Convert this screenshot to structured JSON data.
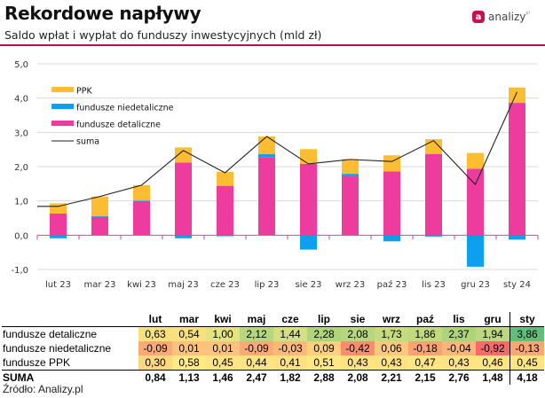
{
  "header": {
    "title": "Rekordowe napływy",
    "subtitle": "Saldo wpłat i wypłat do funduszy inwestycyjnych (mld zł)",
    "logo_mark": "a",
    "logo_text": "analizy",
    "logo_sup": "pl"
  },
  "colors": {
    "ppk": "#FDBD33",
    "niedetaliczne": "#0DA0F0",
    "detaliczne": "#EE3C9E",
    "suma": "#222222",
    "grid": "#D9D9D9",
    "axis": "#D9439B",
    "accent": "#B0115A"
  },
  "chart_data": {
    "type": "bar",
    "stacked": true,
    "title": "Rekordowe napływy",
    "subtitle": "Saldo wpłat i wypłat do funduszy inwestycyjnych (mld zł)",
    "xlabel": "",
    "ylabel": "",
    "ylim": [
      -1.0,
      5.0
    ],
    "yticks": [
      -1.0,
      0.0,
      1.0,
      2.0,
      3.0,
      4.0,
      5.0
    ],
    "ytick_labels": [
      "-1,0",
      "0,0",
      "1,0",
      "2,0",
      "3,0",
      "4,0",
      "5,0"
    ],
    "grid": true,
    "legend_position": "top-left",
    "categories": [
      "lut 23",
      "mar 23",
      "kwi 23",
      "maj 23",
      "cze 23",
      "lip 23",
      "sie 23",
      "wrz 23",
      "paź 23",
      "lis 23",
      "gru 23",
      "sty 24"
    ],
    "series": [
      {
        "name": "fundusze detaliczne",
        "type": "bar",
        "color_key": "detaliczne",
        "values": [
          0.63,
          0.54,
          1.0,
          2.12,
          1.44,
          2.28,
          2.08,
          1.73,
          1.86,
          2.37,
          1.94,
          3.86
        ]
      },
      {
        "name": "fundusze niedetaliczne",
        "type": "bar",
        "color_key": "niedetaliczne",
        "values": [
          -0.09,
          0.01,
          0.01,
          -0.09,
          -0.03,
          0.09,
          -0.42,
          0.06,
          -0.18,
          -0.04,
          -0.92,
          -0.13
        ]
      },
      {
        "name": "PPK",
        "type": "bar",
        "color_key": "ppk",
        "values": [
          0.3,
          0.58,
          0.45,
          0.44,
          0.41,
          0.51,
          0.43,
          0.43,
          0.47,
          0.43,
          0.46,
          0.45
        ]
      },
      {
        "name": "suma",
        "type": "line",
        "color_key": "suma",
        "values": [
          0.84,
          1.13,
          1.46,
          2.47,
          1.82,
          2.88,
          2.08,
          2.21,
          2.15,
          2.76,
          1.48,
          4.18
        ]
      }
    ],
    "legend": [
      {
        "label": "PPK",
        "color_key": "ppk",
        "kind": "box"
      },
      {
        "label": "fundusze niedetaliczne",
        "color_key": "niedetaliczne",
        "kind": "box"
      },
      {
        "label": "fundusze detaliczne",
        "color_key": "detaliczne",
        "kind": "box"
      },
      {
        "label": "suma",
        "color_key": "suma",
        "kind": "line"
      }
    ]
  },
  "table": {
    "headers": [
      "lut",
      "mar",
      "kwi",
      "maj",
      "cze",
      "lip",
      "sie",
      "wrz",
      "paź",
      "lis",
      "gru",
      "sty"
    ],
    "rows": [
      {
        "label": "fundusze detaliczne",
        "values": [
          "0,63",
          "0,54",
          "1,00",
          "2,12",
          "1,44",
          "2,28",
          "2,08",
          "1,73",
          "1,86",
          "2,37",
          "1,94",
          "3,86"
        ],
        "colors": [
          "#F7E07E",
          "#F9E07F",
          "#E4E283",
          "#B6D67D",
          "#D4DE82",
          "#B0D47C",
          "#B8D67D",
          "#C8DA80",
          "#C2D97F",
          "#ADD37C",
          "#BDD77E",
          "#63BE7B"
        ]
      },
      {
        "label": "fundusze niedetaliczne",
        "values": [
          "-0,09",
          "0,01",
          "0,01",
          "-0,09",
          "-0,03",
          "0,09",
          "-0,42",
          "0,06",
          "-0,18",
          "-0,04",
          "-0,92",
          "-0,13"
        ],
        "colors": [
          "#FBAA77",
          "#FDC27D",
          "#FDC27D",
          "#FBAA77",
          "#FCB97A",
          "#FECF7F",
          "#F98E6E",
          "#FEC87E",
          "#FAA273",
          "#FCB679",
          "#F8696B",
          "#FAA776"
        ]
      },
      {
        "label": "fundusze PPK",
        "values": [
          "0,30",
          "0,58",
          "0,45",
          "0,44",
          "0,41",
          "0,51",
          "0,43",
          "0,43",
          "0,47",
          "0,43",
          "0,46",
          "0,45"
        ],
        "colors": [
          "#FED880",
          "#FFEB84",
          "#FFE483",
          "#FFE483",
          "#FEE282",
          "#FFE783",
          "#FFE383",
          "#FFE383",
          "#FFE583",
          "#FFE383",
          "#FFE583",
          "#FFE483"
        ]
      },
      {
        "label": "SUMA",
        "values": [
          "0,84",
          "1,13",
          "1,46",
          "2,47",
          "1,82",
          "2,88",
          "2,08",
          "2,21",
          "2,15",
          "2,76",
          "1,48",
          "4,18"
        ],
        "colors": []
      }
    ]
  },
  "footer": {
    "source": "Źródło: Analizy.pl"
  }
}
